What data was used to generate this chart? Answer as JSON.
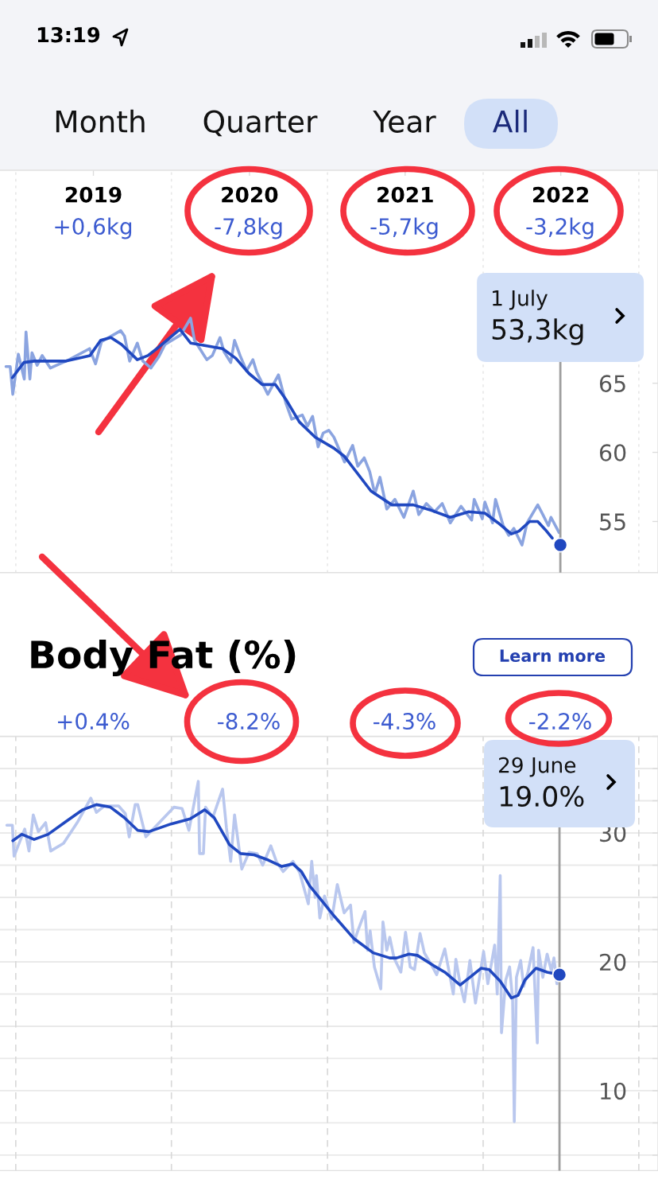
{
  "chart_data": [
    {
      "type": "line",
      "series": [
        {
          "color": "#8ba4e0",
          "x": [
            "2018-12-09",
            "2018-12-19",
            "2018-12-25",
            "2019-01-07",
            "2019-01-21",
            "2019-01-25",
            "2019-02-03",
            "2019-02-08",
            "2019-02-20",
            "2019-03-04",
            "2019-03-23",
            "2019-05-06",
            "2019-06-23",
            "2019-07-07",
            "2019-07-21",
            "2019-09-04",
            "2019-09-13",
            "2019-09-25",
            "2019-10-13",
            "2019-10-26",
            "2019-11-14",
            "2019-12-02",
            "2019-12-17",
            "2020-01-23",
            "2020-02-15",
            "2020-02-24",
            "2020-03-24",
            "2020-04-06",
            "2020-04-24",
            "2020-05-03",
            "2020-05-19",
            "2020-05-28",
            "2020-06-10",
            "2020-06-25",
            "2020-07-10",
            "2020-07-19",
            "2020-08-14",
            "2020-09-08",
            "2020-09-26",
            "2020-10-09",
            "2020-11-03",
            "2020-11-15",
            "2020-11-27",
            "2020-12-10",
            "2020-12-22",
            "2021-01-04",
            "2021-01-16",
            "2021-02-10",
            "2021-03-01",
            "2021-03-13",
            "2021-03-28",
            "2021-04-10",
            "2021-04-22",
            "2021-05-04",
            "2021-05-20",
            "2021-06-08",
            "2021-06-29",
            "2021-07-21",
            "2021-08-03",
            "2021-08-21",
            "2021-09-09",
            "2021-09-27",
            "2021-10-16",
            "2021-11-10",
            "2021-12-05",
            "2021-12-11",
            "2021-12-30",
            "2022-01-05",
            "2022-01-23",
            "2022-01-30",
            "2022-02-17",
            "2022-03-02",
            "2022-03-14",
            "2022-04-02",
            "2022-04-14",
            "2022-05-09",
            "2022-05-21",
            "2022-06-03",
            "2022-06-09",
            "2022-06-28"
          ],
          "values": [
            66.2,
            66.2,
            64.2,
            67.1,
            65.3,
            68.7,
            65.3,
            67.2,
            66.3,
            67.0,
            66.1,
            66.7,
            67.5,
            66.4,
            68.0,
            68.8,
            68.4,
            66.6,
            67.9,
            66.6,
            66.1,
            66.9,
            67.8,
            68.5,
            69.7,
            68.1,
            66.7,
            67.0,
            68.3,
            67.3,
            66.5,
            68.1,
            67.0,
            65.9,
            66.7,
            65.8,
            64.2,
            65.6,
            63.5,
            62.4,
            62.7,
            61.9,
            62.6,
            60.4,
            61.4,
            61.6,
            61.1,
            59.3,
            60.5,
            59.0,
            59.6,
            58.6,
            57.0,
            58.2,
            55.9,
            56.6,
            55.3,
            57.2,
            55.5,
            56.3,
            55.7,
            56.3,
            54.9,
            56.1,
            55.1,
            56.6,
            55.2,
            56.4,
            54.9,
            56.6,
            54.7,
            54.0,
            54.5,
            53.3,
            54.9,
            56.2,
            55.5,
            54.7,
            55.3,
            54.2
          ]
        },
        {
          "color": "#2048c0",
          "x": [
            "2018-12-24",
            "2019-01-20",
            "2019-02-13",
            "2019-04-29",
            "2019-06-24",
            "2019-07-19",
            "2019-08-12",
            "2019-09-06",
            "2019-10-13",
            "2019-11-07",
            "2019-12-02",
            "2020-01-21",
            "2020-02-15",
            "2020-03-24",
            "2020-04-30",
            "2020-05-31",
            "2020-07-01",
            "2020-08-01",
            "2020-09-01",
            "2020-09-26",
            "2020-10-27",
            "2020-12-03",
            "2021-01-16",
            "2021-02-10",
            "2021-04-13",
            "2021-06-01",
            "2021-07-21",
            "2021-09-02",
            "2021-10-16",
            "2021-11-28",
            "2022-01-05",
            "2022-02-05",
            "2022-03-08",
            "2022-03-26",
            "2022-04-20",
            "2022-05-09",
            "2022-05-27",
            "2022-06-12"
          ],
          "values": [
            65.4,
            66.5,
            66.6,
            66.6,
            67.0,
            68.1,
            68.3,
            67.8,
            66.7,
            67.0,
            67.6,
            68.9,
            67.9,
            67.7,
            67.5,
            66.8,
            65.7,
            64.9,
            64.9,
            63.8,
            62.2,
            61.1,
            60.3,
            59.7,
            57.2,
            56.2,
            56.2,
            55.8,
            55.3,
            55.7,
            55.6,
            54.9,
            54.1,
            54.3,
            55.0,
            55.0,
            54.4,
            53.8
          ]
        },
        {
          "type": "scatter",
          "marker": "circle",
          "color": "#2048c0",
          "x": [
            "2022-07-01"
          ],
          "values": [
            53.3
          ]
        }
      ],
      "xlim": [
        "2018-11-25",
        "2023-02-15"
      ],
      "xticks": [
        {
          "value": "2019-07-02",
          "label": "2019"
        },
        {
          "value": "2020-07-02",
          "label": "2020"
        },
        {
          "value": "2021-07-02",
          "label": "2021"
        },
        {
          "value": "2022-07-02",
          "label": "2022"
        }
      ],
      "ylim": [
        51.3,
        80.4
      ],
      "yticks": [
        55,
        60,
        65
      ],
      "ref_lines": [
        {
          "axis": "x",
          "value": "2019-01-01",
          "color": "#e8e8e8",
          "line_style": "dotted"
        },
        {
          "axis": "x",
          "value": "2020-01-01",
          "color": "#e8e8e8",
          "line_style": "dotted"
        },
        {
          "axis": "x",
          "value": "2021-01-01",
          "color": "#e8e8e8",
          "line_style": "dotted"
        },
        {
          "axis": "x",
          "value": "2022-01-01",
          "color": "#e8e8e8",
          "line_style": "dotted"
        },
        {
          "axis": "x",
          "value": "2023-01-01",
          "color": "#e8e8e8",
          "line_style": "dotted"
        },
        {
          "axis": "x",
          "value": "2022-07-01",
          "color": "#9e9e9e"
        }
      ],
      "annotations": [
        "13:19",
        "Month",
        "Quarter",
        "Year",
        "All",
        "+0,6kg",
        "-7,8kg",
        "-5,7kg",
        "-3,2kg",
        "1 July",
        "53,3kg"
      ]
    },
    {
      "type": "line",
      "title": "Body Fat (%)",
      "series": [
        {
          "color": "#b9c7ee",
          "x": [
            "2018-12-11",
            "2018-12-24",
            "2018-12-28",
            "2019-01-22",
            "2019-02-01",
            "2019-02-11",
            "2019-02-23",
            "2019-03-12",
            "2019-03-24",
            "2019-04-23",
            "2019-05-25",
            "2019-06-26",
            "2019-07-09",
            "2019-07-28",
            "2019-08-30",
            "2019-09-15",
            "2019-09-24",
            "2019-10-08",
            "2019-10-14",
            "2019-11-02",
            "2019-11-22",
            "2020-01-07",
            "2020-01-26",
            "2020-02-11",
            "2020-03-04",
            "2020-03-07",
            "2020-03-16",
            "2020-03-21",
            "2020-04-07",
            "2020-04-30",
            "2020-05-09",
            "2020-05-19",
            "2020-05-28",
            "2020-06-14",
            "2020-07-01",
            "2020-07-20",
            "2020-08-02",
            "2020-08-21",
            "2020-09-03",
            "2020-09-19",
            "2020-10-12",
            "2020-10-28",
            "2020-11-17",
            "2020-11-25",
            "2020-12-03",
            "2020-12-06",
            "2020-12-14",
            "2020-12-25",
            "2021-01-11",
            "2021-01-24",
            "2021-02-09",
            "2021-02-24",
            "2021-03-04",
            "2021-03-13",
            "2021-03-30",
            "2021-04-05",
            "2021-04-11",
            "2021-04-21",
            "2021-05-06",
            "2021-05-11",
            "2021-05-20",
            "2021-05-27",
            "2021-06-06",
            "2021-06-22",
            "2021-07-03",
            "2021-07-14",
            "2021-07-24",
            "2021-08-06",
            "2021-08-16",
            "2021-09-01",
            "2021-09-14",
            "2021-10-03",
            "2021-10-23",
            "2021-10-29",
            "2021-11-08",
            "2021-11-18",
            "2021-12-01",
            "2021-12-14",
            "2022-01-02",
            "2022-01-12",
            "2022-01-28",
            "2022-02-03",
            "2022-02-10",
            "2022-02-13",
            "2022-02-23",
            "2022-03-04",
            "2022-03-11",
            "2022-03-15",
            "2022-03-20",
            "2022-03-30",
            "2022-04-06",
            "2022-04-16",
            "2022-04-28",
            "2022-05-08",
            "2022-05-11",
            "2022-05-21",
            "2022-05-31",
            "2022-06-10",
            "2022-06-16",
            "2022-06-23"
          ],
          "values": [
            30.6,
            30.6,
            28.2,
            30.3,
            28.6,
            31.4,
            30.1,
            30.8,
            28.6,
            29.2,
            30.8,
            32.7,
            31.6,
            32.1,
            32.1,
            31.5,
            29.7,
            32.2,
            32.2,
            29.7,
            30.4,
            32.0,
            31.9,
            30.2,
            34.0,
            28.4,
            28.4,
            32.0,
            31.2,
            33.4,
            30.4,
            27.8,
            31.4,
            27.2,
            28.5,
            28.4,
            27.5,
            29.0,
            27.8,
            27.0,
            27.8,
            26.9,
            24.5,
            27.8,
            25.0,
            26.7,
            23.4,
            25.1,
            23.3,
            26.0,
            23.8,
            24.4,
            21.5,
            22.4,
            23.9,
            20.9,
            22.4,
            19.6,
            17.9,
            23.1,
            20.9,
            21.9,
            20.3,
            19.2,
            22.3,
            19.6,
            19.4,
            22.2,
            20.7,
            19.8,
            19.0,
            21.0,
            17.5,
            20.2,
            18.3,
            16.9,
            20.1,
            16.8,
            20.8,
            18.3,
            21.3,
            17.5,
            26.7,
            14.5,
            18.6,
            19.6,
            17.1,
            7.6,
            18.8,
            20.1,
            18.1,
            19.2,
            21.1,
            13.7,
            20.9,
            18.8,
            20.6,
            19.3,
            20.3,
            18.3
          ]
        },
        {
          "color": "#2048c0",
          "x": [
            "2018-12-25",
            "2019-01-15",
            "2019-02-13",
            "2019-03-18",
            "2019-04-29",
            "2019-06-07",
            "2019-07-09",
            "2019-08-11",
            "2019-09-12",
            "2019-10-14",
            "2019-11-09",
            "2019-12-31",
            "2020-02-14",
            "2020-03-19",
            "2020-04-10",
            "2020-05-16",
            "2020-06-11",
            "2020-07-13",
            "2020-08-15",
            "2020-09-16",
            "2020-10-12",
            "2020-11-01",
            "2020-11-20",
            "2020-12-22",
            "2021-01-18",
            "2021-03-04",
            "2021-04-18",
            "2021-05-27",
            "2021-06-12",
            "2021-07-11",
            "2021-07-31",
            "2021-09-07",
            "2021-10-03",
            "2021-11-08",
            "2021-12-01",
            "2021-12-27",
            "2022-01-15",
            "2022-02-10",
            "2022-03-08",
            "2022-03-24",
            "2022-04-09",
            "2022-05-05",
            "2022-05-31",
            "2022-06-29"
          ],
          "values": [
            29.4,
            29.9,
            29.5,
            29.9,
            30.9,
            31.8,
            32.2,
            32.0,
            31.2,
            30.2,
            30.1,
            30.7,
            31.1,
            31.8,
            31.2,
            29.1,
            28.4,
            28.3,
            27.9,
            27.4,
            27.6,
            27.0,
            25.9,
            24.6,
            23.5,
            21.8,
            20.7,
            20.3,
            20.3,
            20.6,
            20.5,
            19.7,
            19.2,
            18.2,
            18.8,
            19.5,
            19.4,
            18.5,
            17.2,
            17.4,
            18.6,
            19.5,
            19.2,
            19.0
          ]
        },
        {
          "type": "scatter",
          "marker": "circle",
          "color": "#2048c0",
          "x": [
            "2022-06-29"
          ],
          "values": [
            19.0
          ]
        }
      ],
      "xlim": [
        "2018-11-25",
        "2023-02-15"
      ],
      "xticks": [
        {
          "value": "2019-07-02",
          "label": null
        },
        {
          "value": "2020-07-02",
          "label": null
        },
        {
          "value": "2021-07-02",
          "label": null
        },
        {
          "value": "2022-07-02",
          "label": null
        }
      ],
      "ylim": [
        3.8,
        37.5
      ],
      "yticks": [
        {
          "value": 5,
          "label": null
        },
        {
          "value": 7.5,
          "label": null
        },
        10,
        {
          "value": 12.5,
          "label": null
        },
        {
          "value": 15,
          "label": null
        },
        {
          "value": 17.5,
          "label": null
        },
        20,
        {
          "value": 22.5,
          "label": null
        },
        {
          "value": 25,
          "label": null
        },
        {
          "value": 27.5,
          "label": null
        },
        30,
        {
          "value": 32.5,
          "label": null
        },
        {
          "value": 35,
          "label": null
        },
        {
          "value": 37.5,
          "label": null
        }
      ],
      "grid": "y",
      "tick_labels": "y",
      "ref_lines": [
        {
          "axis": "x",
          "value": "2019-01-01",
          "color": "#d9d9d9",
          "line_style": "dashed"
        },
        {
          "axis": "x",
          "value": "2020-01-01",
          "color": "#d9d9d9",
          "line_style": "dashed"
        },
        {
          "axis": "x",
          "value": "2021-01-01",
          "color": "#d9d9d9",
          "line_style": "dashed"
        },
        {
          "axis": "x",
          "value": "2022-01-01",
          "color": "#d9d9d9",
          "line_style": "dashed"
        },
        {
          "axis": "x",
          "value": "2023-01-01",
          "color": "#d9d9d9",
          "line_style": "dashed"
        },
        {
          "axis": "x",
          "value": "2022-06-29",
          "color": "#9e9e9e"
        }
      ],
      "annotations": [
        "Learn more",
        "+0.4%",
        "-8.2%",
        "-4.3%",
        "-2.2%",
        "29 June",
        "19.0%"
      ]
    }
  ]
}
